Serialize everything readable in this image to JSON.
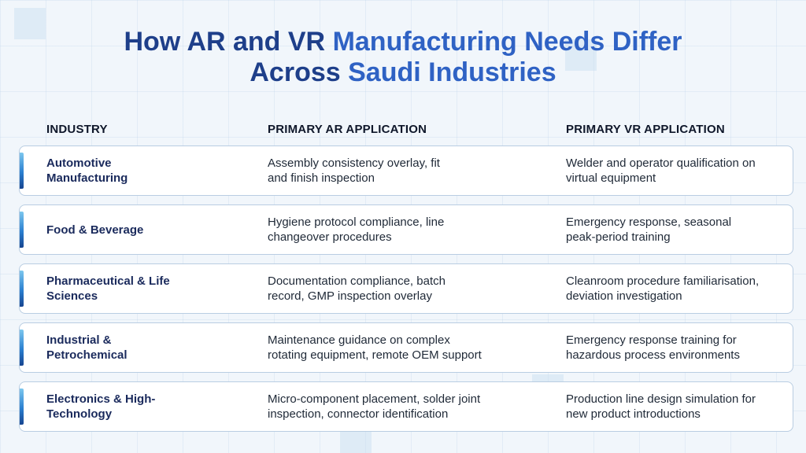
{
  "title": {
    "line1_a": "How AR and VR ",
    "line1_b": "Manufacturing Needs Differ",
    "line2_a": "Across ",
    "line2_b": "Saudi Industries"
  },
  "headers": {
    "industry": "INDUSTRY",
    "ar": "PRIMARY AR APPLICATION",
    "vr": "PRIMARY VR APPLICATION"
  },
  "rows": [
    {
      "industry": [
        "Automotive",
        "Manufacturing"
      ],
      "ar": [
        "Assembly consistency overlay, fit",
        "and finish inspection"
      ],
      "vr": [
        "Welder and operator qualification on",
        "virtual equipment"
      ]
    },
    {
      "industry": [
        "Food & Beverage"
      ],
      "ar": [
        "Hygiene protocol compliance, line",
        "changeover procedures"
      ],
      "vr": [
        "Emergency response, seasonal",
        "peak-period training"
      ]
    },
    {
      "industry": [
        "Pharmaceutical & Life",
        "Sciences"
      ],
      "ar": [
        "Documentation compliance, batch",
        "record, GMP inspection overlay"
      ],
      "vr": [
        "Cleanroom procedure familiarisation,",
        "deviation investigation"
      ]
    },
    {
      "industry": [
        "Industrial &",
        "Petrochemical"
      ],
      "ar": [
        "Maintenance guidance on complex",
        "rotating equipment, remote OEM support"
      ],
      "vr": [
        "Emergency response training for",
        "hazardous process environments"
      ]
    },
    {
      "industry": [
        "Electronics & High-",
        "Technology"
      ],
      "ar": [
        "Micro-component placement, solder joint",
        "inspection, connector identification"
      ],
      "vr": [
        "Production line design simulation for",
        "new product introductions"
      ]
    }
  ]
}
